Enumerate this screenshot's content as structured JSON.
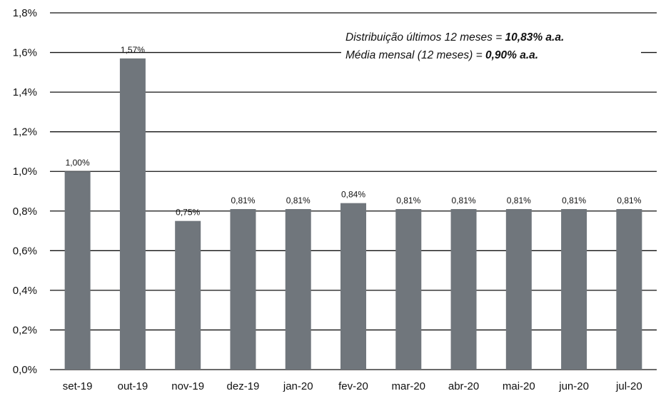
{
  "chart_data": {
    "type": "bar",
    "categories": [
      "set-19",
      "out-19",
      "nov-19",
      "dez-19",
      "jan-20",
      "fev-20",
      "mar-20",
      "abr-20",
      "mai-20",
      "jun-20",
      "jul-20"
    ],
    "values": [
      1.0,
      1.57,
      0.75,
      0.81,
      0.81,
      0.84,
      0.81,
      0.81,
      0.81,
      0.81,
      0.81
    ],
    "data_labels": [
      "1,00%",
      "1,57%",
      "0,75%",
      "0,81%",
      "0,81%",
      "0,84%",
      "0,81%",
      "0,81%",
      "0,81%",
      "0,81%",
      "0,81%"
    ],
    "y_ticks": [
      0,
      0.2,
      0.4,
      0.6,
      0.8,
      1.0,
      1.2,
      1.4,
      1.6,
      1.8
    ],
    "y_tick_labels": [
      "0,0%",
      "0,2%",
      "0,4%",
      "0,6%",
      "0,8%",
      "1,0%",
      "1,2%",
      "1,4%",
      "1,6%",
      "1,8%"
    ],
    "ylim": [
      0,
      1.8
    ],
    "grid": true,
    "bar_color": "#70767c",
    "grid_color": "#111111",
    "title": "",
    "xlabel": "",
    "ylabel": "",
    "annotations": [
      {
        "prefix": "Distribuição últimos 12 meses = ",
        "value": "10,83% a.a."
      },
      {
        "prefix": "Média mensal (12 meses) = ",
        "value": "0,90% a.a."
      }
    ]
  }
}
